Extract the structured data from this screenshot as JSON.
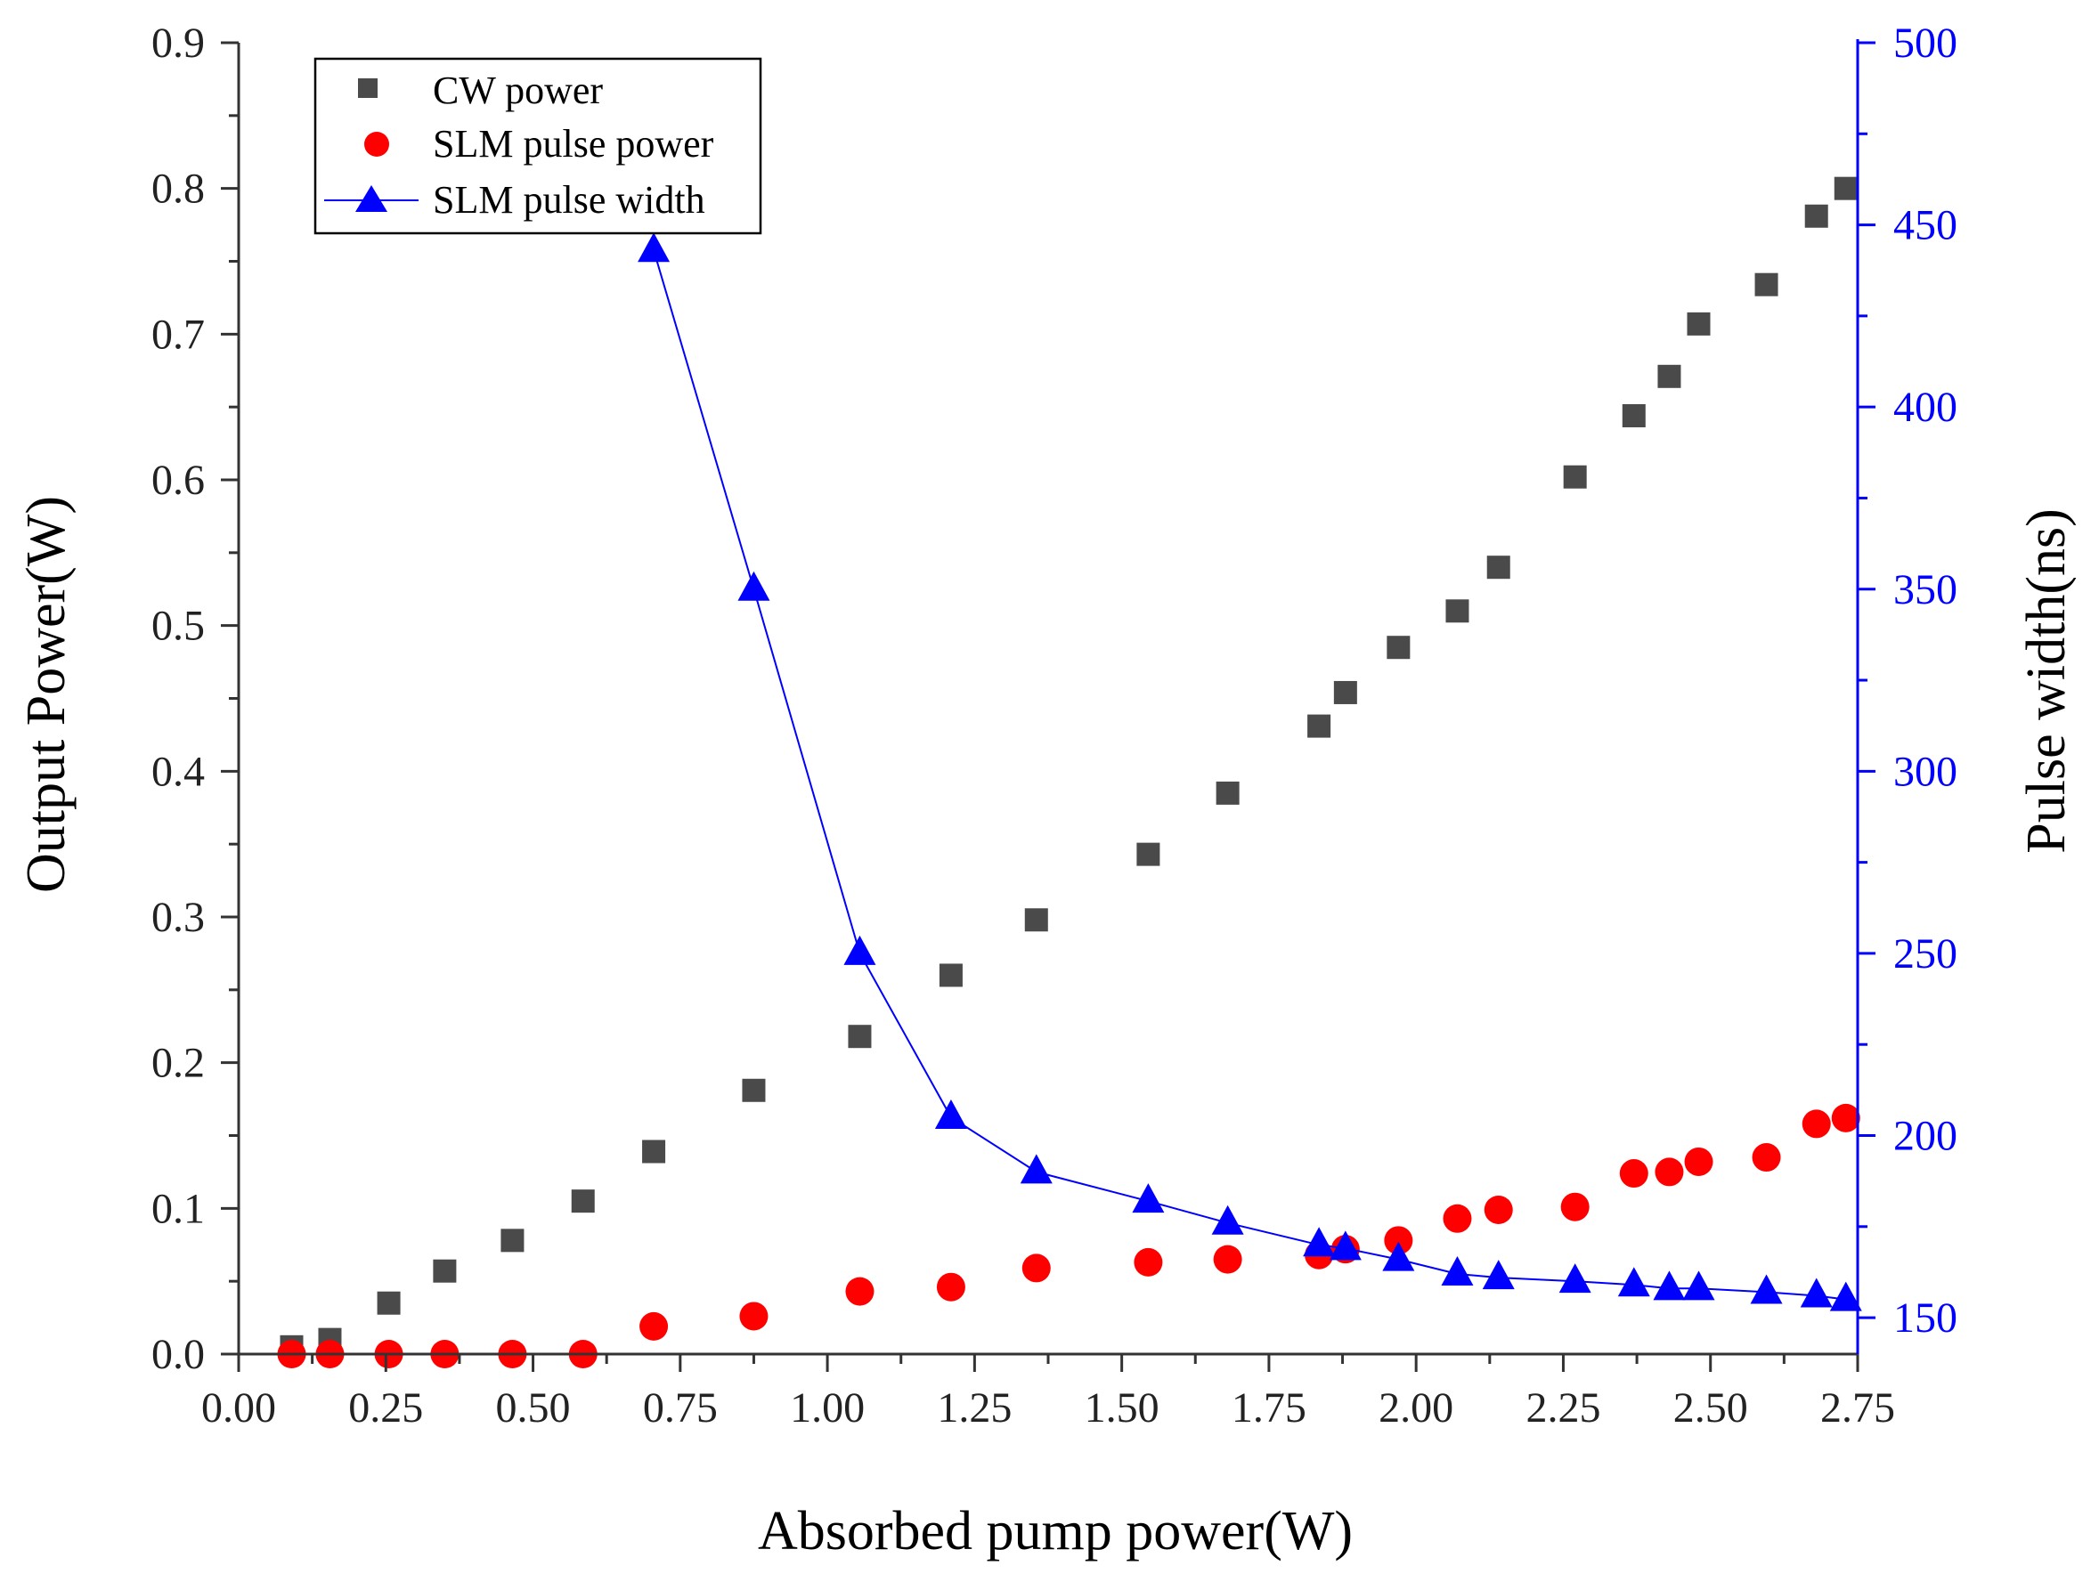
{
  "chart_data": {
    "type": "scatter",
    "title": "",
    "xlabel": "Absorbed pump power(W)",
    "ylabel": "Output Power(W)",
    "y2label": "Pulse width(ns)",
    "xlim": [
      0.0,
      2.75
    ],
    "ylim": [
      0.0,
      0.9
    ],
    "y2lim": [
      140,
      500
    ],
    "x_ticks": [
      "0.00",
      "0.25",
      "0.50",
      "0.75",
      "1.00",
      "1.25",
      "1.50",
      "1.75",
      "2.00",
      "2.25",
      "2.50",
      "2.75"
    ],
    "x_tick_values": [
      0.0,
      0.25,
      0.5,
      0.75,
      1.0,
      1.25,
      1.5,
      1.75,
      2.0,
      2.25,
      2.5,
      2.75
    ],
    "y_ticks": [
      "0.0",
      "0.1",
      "0.2",
      "0.3",
      "0.4",
      "0.5",
      "0.6",
      "0.7",
      "0.8",
      "0.9"
    ],
    "y_tick_values": [
      0.0,
      0.1,
      0.2,
      0.3,
      0.4,
      0.5,
      0.6,
      0.7,
      0.8,
      0.9
    ],
    "y2_ticks": [
      "150",
      "200",
      "250",
      "300",
      "350",
      "400",
      "450",
      "500"
    ],
    "y2_tick_values": [
      150,
      200,
      250,
      300,
      350,
      400,
      450,
      500
    ],
    "grid": false,
    "legend_position": "top-left",
    "series": [
      {
        "name": "CW power",
        "marker": "square",
        "color": "#4a4a4a",
        "axis": "left",
        "line": false,
        "x": [
          0.09,
          0.155,
          0.255,
          0.35,
          0.465,
          0.585,
          0.705,
          0.875,
          1.055,
          1.21,
          1.355,
          1.545,
          1.68,
          1.835,
          1.88,
          1.97,
          2.07,
          2.14,
          2.27,
          2.37,
          2.43,
          2.48,
          2.595,
          2.68,
          2.73
        ],
        "values": [
          0.005,
          0.01,
          0.035,
          0.057,
          0.078,
          0.105,
          0.139,
          0.181,
          0.218,
          0.26,
          0.298,
          0.343,
          0.385,
          0.431,
          0.454,
          0.485,
          0.51,
          0.54,
          0.602,
          0.644,
          0.671,
          0.707,
          0.734,
          0.781,
          0.8
        ]
      },
      {
        "name": "SLM pulse power",
        "marker": "circle",
        "color": "#ff0000",
        "axis": "left",
        "line": false,
        "x": [
          0.09,
          0.155,
          0.255,
          0.35,
          0.465,
          0.585,
          0.705,
          0.875,
          1.055,
          1.21,
          1.355,
          1.545,
          1.68,
          1.835,
          1.88,
          1.97,
          2.07,
          2.14,
          2.27,
          2.37,
          2.43,
          2.48,
          2.595,
          2.68,
          2.73
        ],
        "values": [
          0.0,
          0.0,
          0.0,
          0.0,
          0.0,
          0.0,
          0.019,
          0.026,
          0.043,
          0.046,
          0.059,
          0.063,
          0.065,
          0.068,
          0.072,
          0.078,
          0.093,
          0.099,
          0.101,
          0.124,
          0.125,
          0.132,
          0.135,
          0.158,
          0.162
        ]
      },
      {
        "name": "SLM pulse width",
        "marker": "triangle",
        "color": "#0000ff",
        "axis": "right",
        "line": true,
        "x": [
          0.705,
          0.875,
          1.055,
          1.21,
          1.355,
          1.545,
          1.68,
          1.835,
          1.88,
          1.97,
          2.07,
          2.14,
          2.27,
          2.37,
          2.43,
          2.48,
          2.595,
          2.68,
          2.73
        ],
        "values": [
          443,
          350,
          250,
          205,
          190,
          182,
          176,
          170,
          169,
          166,
          162,
          161,
          160,
          159,
          158,
          158,
          157,
          156,
          155
        ]
      }
    ]
  }
}
